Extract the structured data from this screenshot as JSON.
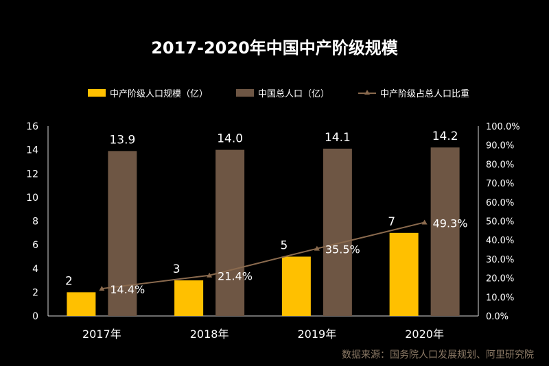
{
  "title": "2017-2020年中国中产阶级规模",
  "source": "数据来源：国务院人口发展规划、阿里研究院",
  "colors": {
    "middle_class": "#ffc000",
    "population": "#6e5644",
    "ratio_line": "#8a6a4e",
    "axis_text": "#ffffff"
  },
  "chart_data": {
    "type": "bar",
    "categories": [
      "2017年",
      "2018年",
      "2019年",
      "2020年"
    ],
    "series": [
      {
        "name": "中产阶级人口规模（亿）",
        "kind": "bar",
        "axis": "left",
        "values": [
          2,
          3,
          5,
          7
        ],
        "labels": [
          "2",
          "3",
          "5",
          "7"
        ]
      },
      {
        "name": "中国总人口（亿）",
        "kind": "bar",
        "axis": "left",
        "values": [
          13.9,
          14.0,
          14.1,
          14.2
        ],
        "labels": [
          "13.9",
          "14.0",
          "14.1",
          "14.2"
        ]
      },
      {
        "name": "中产阶级占总人口比重",
        "kind": "line",
        "axis": "right",
        "values": [
          14.4,
          21.4,
          35.5,
          49.3
        ],
        "labels": [
          "14.4%",
          "21.4%",
          "35.5%",
          "49.3%"
        ]
      }
    ],
    "left_axis": {
      "ylim": [
        0,
        16
      ],
      "ticks": [
        "0",
        "2",
        "4",
        "6",
        "8",
        "10",
        "12",
        "14",
        "16"
      ]
    },
    "right_axis": {
      "ylim": [
        0,
        100
      ],
      "ticks": [
        "0.0%",
        "10.0%",
        "20.0%",
        "30.0%",
        "40.0%",
        "50.0%",
        "60.0%",
        "70.0%",
        "80.0%",
        "90.0%",
        "100.0%"
      ]
    },
    "legend_position": "top",
    "grid": false
  }
}
